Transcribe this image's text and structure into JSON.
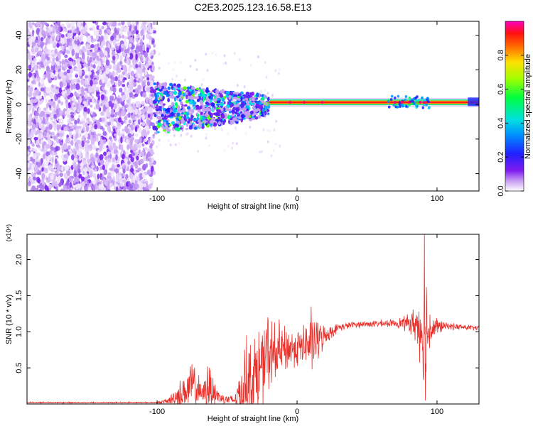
{
  "title": "C2E3.2025.123.16.58.E13",
  "chart_data": [
    {
      "type": "heatmap",
      "xlabel": "Height of straight line (km)",
      "ylabel": "Frequency (Hz)",
      "xlim": [
        -193,
        130
      ],
      "ylim": [
        -50,
        48
      ],
      "x_ticks": [
        -100,
        0,
        100
      ],
      "x_tick_labels": [
        "-100",
        "0",
        "100"
      ],
      "y_ticks": [
        -40,
        -20,
        0,
        20,
        40
      ],
      "y_tick_labels": [
        "-40",
        "-20",
        "0",
        "20",
        "40"
      ],
      "colorbar": {
        "label": "Normalized spectral amplitude",
        "range": [
          0,
          1
        ],
        "ticks": [
          0.0,
          0.2,
          0.4,
          0.6,
          0.8
        ],
        "tick_labels": [
          "0.0",
          "0.2",
          "0.4",
          "0.6",
          "0.8"
        ]
      },
      "regions": [
        {
          "x_range": [
            -193,
            -102
          ],
          "freq_range": [
            -50,
            48
          ],
          "amplitude": 0.1
        },
        {
          "x_range": [
            -102,
            -20
          ],
          "freq_range": [
            -15,
            15
          ],
          "amplitude": 0.35
        },
        {
          "x_range": [
            -20,
            130
          ],
          "freq_center": 1,
          "freq_width": 2,
          "amplitude": 0.95
        },
        {
          "x_range": [
            65,
            95
          ],
          "freq_range": [
            -2,
            5
          ],
          "amplitude": 0.5
        }
      ],
      "grid": false
    },
    {
      "type": "line",
      "xlabel": "Height of straight line (km)",
      "ylabel": "SNR (10 * v/v)",
      "y_multiplier": "(x10⁴)",
      "xlim": [
        -193,
        130
      ],
      "ylim": [
        0,
        2.35
      ],
      "x_ticks": [
        -100,
        0,
        100
      ],
      "x_tick_labels": [
        "-100",
        "0",
        "100"
      ],
      "y_ticks": [
        0.5,
        1.0,
        1.5,
        2.0
      ],
      "y_tick_labels": [
        "0.5",
        "1.0",
        "1.5",
        "2.0"
      ],
      "series_color": "#e8302a",
      "envelope": [
        {
          "x": -193,
          "base": 0.02,
          "amp": 0.01
        },
        {
          "x": -100,
          "base": 0.02,
          "amp": 0.01
        },
        {
          "x": -92,
          "base": 0.04,
          "amp": 0.05
        },
        {
          "x": -80,
          "base": 0.18,
          "amp": 0.3
        },
        {
          "x": -73,
          "base": 0.25,
          "amp": 0.4
        },
        {
          "x": -68,
          "base": 0.12,
          "amp": 0.12
        },
        {
          "x": -63,
          "base": 0.25,
          "amp": 0.42
        },
        {
          "x": -55,
          "base": 0.08,
          "amp": 0.1
        },
        {
          "x": -45,
          "base": 0.05,
          "amp": 0.08
        },
        {
          "x": -38,
          "base": 0.25,
          "amp": 0.55
        },
        {
          "x": -28,
          "base": 0.45,
          "amp": 0.7
        },
        {
          "x": -20,
          "base": 0.65,
          "amp": 0.7
        },
        {
          "x": -10,
          "base": 0.75,
          "amp": 0.4
        },
        {
          "x": 0,
          "base": 0.78,
          "amp": 0.3
        },
        {
          "x": 12,
          "base": 0.85,
          "amp": 0.45
        },
        {
          "x": 20,
          "base": 0.95,
          "amp": 0.15
        },
        {
          "x": 30,
          "base": 1.06,
          "amp": 0.06
        },
        {
          "x": 40,
          "base": 1.1,
          "amp": 0.05
        },
        {
          "x": 70,
          "base": 1.12,
          "amp": 0.06
        },
        {
          "x": 80,
          "base": 1.12,
          "amp": 0.15
        },
        {
          "x": 86,
          "base": 1.1,
          "amp": 0.35
        },
        {
          "x": 91,
          "base": 1.0,
          "amp": 0.9
        },
        {
          "x": 96,
          "base": 1.05,
          "amp": 0.25
        },
        {
          "x": 105,
          "base": 1.08,
          "amp": 0.06
        },
        {
          "x": 130,
          "base": 1.05,
          "amp": 0.04
        }
      ],
      "spikes": [
        {
          "x": 91,
          "y": 2.35
        },
        {
          "x": 91.6,
          "y": 0.05
        },
        {
          "x": 92.5,
          "y": 1.62
        },
        {
          "x": 10,
          "y": 1.35
        },
        {
          "x": -21,
          "y": 1.2
        },
        {
          "x": -36,
          "y": 0.95
        },
        {
          "x": -64,
          "y": 0.52
        },
        {
          "x": -75,
          "y": 0.55
        }
      ],
      "grid": false
    }
  ]
}
